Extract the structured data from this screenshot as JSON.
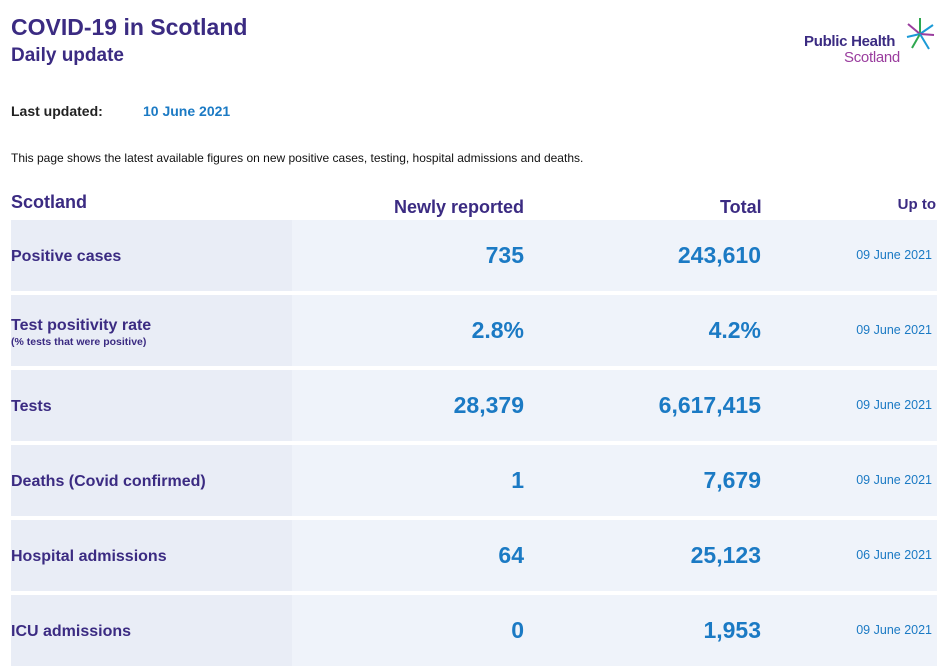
{
  "header": {
    "title": "COVID-19 in Scotland",
    "subtitle": "Daily update"
  },
  "logo": {
    "line1": "Public Health",
    "line2": "Scotland"
  },
  "updated": {
    "label": "Last updated:",
    "value": "10 June 2021"
  },
  "intro": "This page shows the latest available figures on new positive cases, testing, hospital admissions and deaths.",
  "table": {
    "headers": {
      "region": "Scotland",
      "new": "Newly reported",
      "total": "Total",
      "upto": "Up to"
    },
    "rows": [
      {
        "name": "Positive cases",
        "note": "",
        "new": "735",
        "total": "243,610",
        "date": "09 June 2021"
      },
      {
        "name": "Test positivity rate",
        "note": "(% tests that were positive)",
        "new": "2.8%",
        "total": "4.2%",
        "date": "09 June 2021"
      },
      {
        "name": "Tests",
        "note": "",
        "new": "28,379",
        "total": "6,617,415",
        "date": "09 June 2021"
      },
      {
        "name": "Deaths (Covid confirmed)",
        "note": "",
        "new": "1",
        "total": "7,679",
        "date": "09 June 2021"
      },
      {
        "name": "Hospital admissions",
        "note": "",
        "new": "64",
        "total": "25,123",
        "date": "06 June 2021"
      },
      {
        "name": "ICU admissions",
        "note": "",
        "new": "0",
        "total": "1,953",
        "date": "09 June 2021"
      }
    ]
  },
  "colors": {
    "brand_purple": "#3b2b82",
    "value_blue": "#1b7ac4",
    "logo_purple": "#9a3d9e",
    "logo_green": "#2fa84f",
    "logo_blue": "#1b9ad6"
  }
}
